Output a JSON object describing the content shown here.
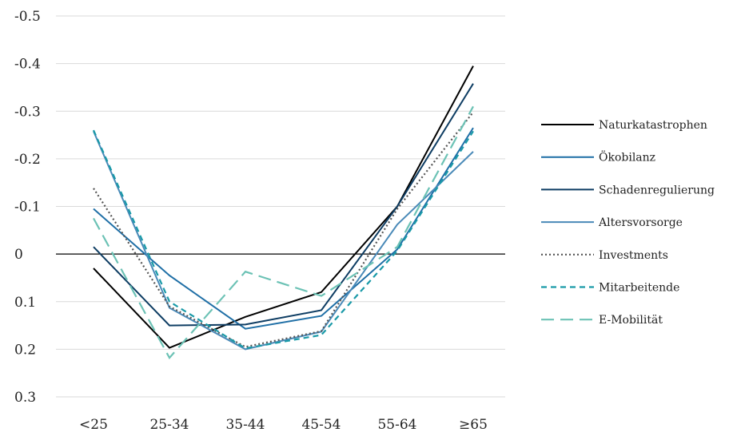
{
  "chart_data": {
    "type": "line",
    "categories": [
      "<25",
      "25-34",
      "35-44",
      "45-54",
      "55-64",
      "≥65"
    ],
    "y_ticks": [
      -0.5,
      -0.4,
      -0.3,
      -0.2,
      -0.1,
      0,
      0.1,
      0.2,
      0.3
    ],
    "y_tick_labels": [
      "-0.5",
      "-0.4",
      "-0.3",
      "-0.2",
      "-0.1",
      "0",
      "0.1",
      "0.2",
      "0.3"
    ],
    "ylim": [
      -0.5,
      0.3
    ],
    "y_axis_inverted": true,
    "grid": "horizontal",
    "legend_position": "right",
    "series": [
      {
        "name": "Naturkatastrophen",
        "values": [
          0.03,
          0.197,
          0.132,
          0.08,
          -0.1,
          -0.395
        ],
        "color": "#000000",
        "style": "solid"
      },
      {
        "name": "Ökobilanz",
        "values": [
          -0.095,
          0.045,
          0.157,
          0.13,
          -0.01,
          -0.265
        ],
        "color": "#1f6fa6",
        "style": "solid"
      },
      {
        "name": "Schadenregulierung",
        "values": [
          -0.015,
          0.15,
          0.148,
          0.118,
          -0.1,
          -0.358
        ],
        "color": "#0e3d63",
        "style": "solid"
      },
      {
        "name": "Altersvorsorge",
        "values": [
          -0.258,
          0.113,
          0.2,
          0.163,
          -0.062,
          -0.215
        ],
        "color": "#4a8ab8",
        "style": "solid"
      },
      {
        "name": "Investments",
        "values": [
          -0.138,
          0.11,
          0.195,
          0.162,
          -0.095,
          -0.298
        ],
        "color": "#555555",
        "style": "dotted"
      },
      {
        "name": "Mitarbeitende",
        "values": [
          -0.26,
          0.1,
          0.198,
          0.17,
          -0.007,
          -0.258
        ],
        "color": "#1a9aa8",
        "style": "dashed"
      },
      {
        "name": "E-Mobilität",
        "values": [
          -0.075,
          0.218,
          0.037,
          0.088,
          -0.015,
          -0.31
        ],
        "color": "#6cc2b5",
        "style": "longdash"
      }
    ]
  }
}
